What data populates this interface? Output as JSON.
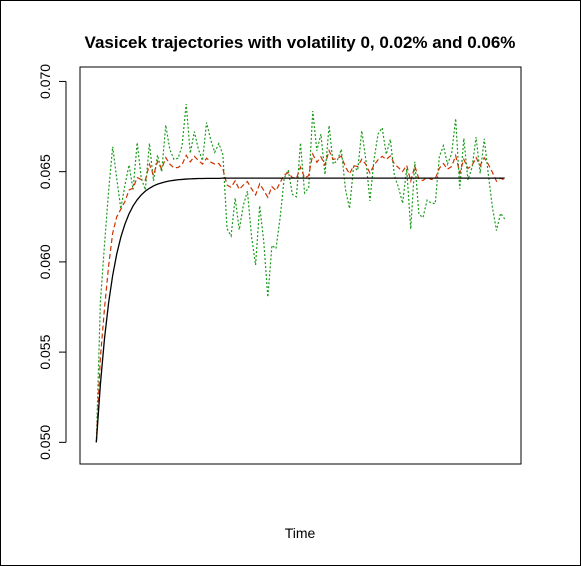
{
  "chart_data": {
    "type": "line",
    "title": "Vasicek trajectories with volatility 0, 0.02% and 0.06%",
    "xlabel": "Time",
    "ylabel": "",
    "ylim": [
      0.0488,
      0.0708
    ],
    "yticks": [
      "0.050",
      "0.055",
      "0.060",
      "0.065",
      "0.070"
    ],
    "x": [
      0,
      1,
      2,
      3,
      4,
      5,
      6,
      7,
      8,
      9,
      10,
      11,
      12,
      13,
      14,
      15,
      16,
      17,
      18,
      19,
      20,
      21,
      22,
      23,
      24,
      25,
      26,
      27,
      28,
      29,
      30,
      31,
      32,
      33,
      34,
      35,
      36,
      37,
      38,
      39,
      40,
      41,
      42,
      43,
      44,
      45,
      46,
      47,
      48,
      49,
      50,
      51,
      52,
      53,
      54,
      55,
      56,
      57,
      58,
      59,
      60,
      61,
      62,
      63,
      64,
      65,
      66,
      67,
      68,
      69,
      70,
      71,
      72,
      73,
      74,
      75,
      76,
      77,
      78,
      79,
      80,
      81,
      82,
      83,
      84,
      85,
      86,
      87,
      88,
      89,
      90,
      91,
      92,
      93,
      94,
      95,
      96,
      97,
      98,
      99,
      100
    ],
    "xlim": [
      -4,
      104
    ],
    "series": [
      {
        "color": "#000000",
        "dash": "solid",
        "values": [
          0.05,
          0.05323,
          0.05575,
          0.05772,
          0.05925,
          0.06044,
          0.06137,
          0.06209,
          0.06266,
          0.0631,
          0.06344,
          0.06371,
          0.06392,
          0.06408,
          0.06421,
          0.06431,
          0.06438,
          0.06444,
          0.06449,
          0.06452,
          0.06455,
          0.06457,
          0.06459,
          0.0646,
          0.06461,
          0.06462,
          0.06462,
          0.06463,
          0.06463,
          0.06463,
          0.06463,
          0.06464,
          0.06464,
          0.06464,
          0.06464,
          0.06464,
          0.06464,
          0.06464,
          0.06464,
          0.06464,
          0.06464,
          0.06464,
          0.06464,
          0.06464,
          0.06464,
          0.06464,
          0.06464,
          0.06464,
          0.06464,
          0.06464,
          0.06464,
          0.06464,
          0.06464,
          0.06464,
          0.06464,
          0.06464,
          0.06464,
          0.06464,
          0.06464,
          0.06464,
          0.06464,
          0.06464,
          0.06464,
          0.06464,
          0.06464,
          0.06464,
          0.06464,
          0.06464,
          0.06464,
          0.06464,
          0.06464,
          0.06464,
          0.06464,
          0.06464,
          0.06464,
          0.06464,
          0.06464,
          0.06464,
          0.06464,
          0.06464,
          0.06464,
          0.06464,
          0.06464,
          0.06464,
          0.06464,
          0.06464,
          0.06464,
          0.06464,
          0.06464,
          0.06464,
          0.06464,
          0.06464,
          0.06464,
          0.06464,
          0.06464,
          0.06464,
          0.06464,
          0.06464,
          0.06464,
          0.06464,
          0.06464
        ]
      },
      {
        "color": "#cc3300",
        "dash": "dashed",
        "values": [
          0.05,
          0.05472,
          0.05742,
          0.05976,
          0.06159,
          0.0625,
          0.06292,
          0.06334,
          0.06398,
          0.06409,
          0.06467,
          0.06456,
          0.06452,
          0.06541,
          0.0648,
          0.06558,
          0.06514,
          0.06578,
          0.06542,
          0.06521,
          0.06523,
          0.06539,
          0.06591,
          0.06554,
          0.06585,
          0.06562,
          0.06542,
          0.06575,
          0.06553,
          0.06542,
          0.06545,
          0.06514,
          0.06426,
          0.06413,
          0.06449,
          0.06402,
          0.06426,
          0.06445,
          0.06406,
          0.06371,
          0.06433,
          0.06397,
          0.06358,
          0.06417,
          0.06395,
          0.06439,
          0.06482,
          0.06495,
          0.06467,
          0.06463,
          0.06525,
          0.06466,
          0.06478,
          0.06597,
          0.06552,
          0.06582,
          0.06537,
          0.06617,
          0.06568,
          0.06573,
          0.06586,
          0.06526,
          0.06488,
          0.06533,
          0.06528,
          0.06569,
          0.06541,
          0.06492,
          0.06536,
          0.06566,
          0.06585,
          0.06568,
          0.06587,
          0.06543,
          0.06522,
          0.06501,
          0.06535,
          0.06448,
          0.06531,
          0.06459,
          0.06451,
          0.06469,
          0.06457,
          0.06461,
          0.06519,
          0.06545,
          0.06514,
          0.06528,
          0.06589,
          0.06493,
          0.06568,
          0.06518,
          0.06534,
          0.06578,
          0.06534,
          0.06577,
          0.06541,
          0.06496,
          0.06447,
          0.06465,
          0.06451
        ]
      },
      {
        "color": "#1a9a1a",
        "dash": "dotted",
        "values": [
          0.05,
          0.05782,
          0.06095,
          0.06391,
          0.06638,
          0.06461,
          0.06294,
          0.06425,
          0.06537,
          0.06401,
          0.06661,
          0.06464,
          0.06399,
          0.06657,
          0.06449,
          0.06592,
          0.06499,
          0.06758,
          0.06623,
          0.06568,
          0.06574,
          0.06643,
          0.06875,
          0.06602,
          0.06722,
          0.06624,
          0.06561,
          0.06772,
          0.06677,
          0.06607,
          0.06656,
          0.06594,
          0.06184,
          0.06144,
          0.06354,
          0.06178,
          0.06314,
          0.06392,
          0.06143,
          0.05983,
          0.06311,
          0.06113,
          0.05805,
          0.06091,
          0.06074,
          0.06243,
          0.06463,
          0.06509,
          0.06374,
          0.06361,
          0.06659,
          0.06382,
          0.06411,
          0.06836,
          0.06616,
          0.06708,
          0.06484,
          0.06755,
          0.06542,
          0.06562,
          0.06624,
          0.06403,
          0.06296,
          0.06527,
          0.06507,
          0.06726,
          0.06568,
          0.06338,
          0.06567,
          0.06709,
          0.06743,
          0.06596,
          0.06679,
          0.06478,
          0.06413,
          0.06325,
          0.06515,
          0.06182,
          0.06555,
          0.06263,
          0.06246,
          0.06342,
          0.06326,
          0.06323,
          0.06583,
          0.06644,
          0.06542,
          0.06598,
          0.06794,
          0.06405,
          0.06685,
          0.06454,
          0.06522,
          0.06692,
          0.06491,
          0.06682,
          0.06484,
          0.06301,
          0.06174,
          0.06269,
          0.06238
        ]
      }
    ]
  }
}
